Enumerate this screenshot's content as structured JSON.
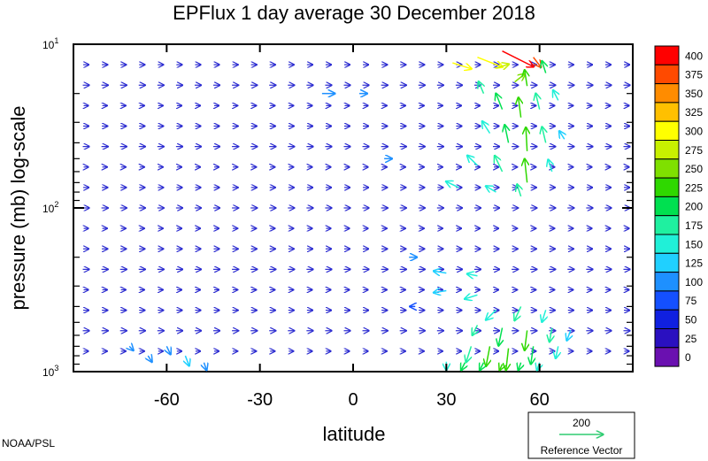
{
  "credit": "NOAA/PSL",
  "reference_vector": {
    "value": "200",
    "label": "Reference Vector",
    "color": "#2ecc71"
  },
  "chart_data": {
    "type": "quiver",
    "title": "EPFlux  1 day average  30 December 2018",
    "xlabel": "latitude",
    "ylabel": "pressure (mb)  log-scale",
    "x_ticks": [
      {
        "value": -60,
        "label": "-60"
      },
      {
        "value": -30,
        "label": "-30"
      },
      {
        "value": 0,
        "label": "0"
      },
      {
        "value": 30,
        "label": "30"
      },
      {
        "value": 60,
        "label": "60"
      }
    ],
    "y_ticks": [
      {
        "value": 10,
        "base": "10",
        "exp": "1"
      },
      {
        "value": 100,
        "base": "10",
        "exp": "2"
      },
      {
        "value": 1000,
        "base": "10",
        "exp": "3"
      }
    ],
    "xlim": [
      -90,
      90
    ],
    "ylim": [
      1000,
      10
    ],
    "y_scale": "log",
    "y_inverted": true,
    "colorbar": {
      "levels": [
        "400",
        "375",
        "350",
        "325",
        "300",
        "275",
        "250",
        "225",
        "200",
        "175",
        "150",
        "125",
        "100",
        "75",
        "50",
        "25",
        "0"
      ],
      "colors": [
        "#ff0000",
        "#ff4a00",
        "#ff8c00",
        "#ffc000",
        "#ffff00",
        "#c8f000",
        "#7fe000",
        "#2fd800",
        "#00e050",
        "#1ff0a0",
        "#20f0d8",
        "#20d0ff",
        "#1e90ff",
        "#1450ff",
        "#1020e0",
        "#2a10c0",
        "#6a10b0"
      ]
    },
    "vectors": [
      {
        "lat": 32,
        "p": 13,
        "u": 15,
        "v": -3,
        "mag": 300
      },
      {
        "lat": 40,
        "p": 12,
        "u": 20,
        "v": -5,
        "mag": 320
      },
      {
        "lat": 48,
        "p": 11,
        "u": 25,
        "v": -8,
        "mag": 400
      },
      {
        "lat": 58,
        "p": 12,
        "u": 6,
        "v": -5,
        "mag": 380
      },
      {
        "lat": 46,
        "p": 14,
        "u": 10,
        "v": 2,
        "mag": 290
      },
      {
        "lat": 52,
        "p": 17,
        "u": 8,
        "v": 4,
        "mag": 270
      },
      {
        "lat": 56,
        "p": 18,
        "u": -2,
        "v": 8,
        "mag": 240
      },
      {
        "lat": 62,
        "p": 15,
        "u": -3,
        "v": 6,
        "mag": 200
      },
      {
        "lat": 42,
        "p": 20,
        "u": -4,
        "v": 6,
        "mag": 180
      },
      {
        "lat": 48,
        "p": 25,
        "u": -5,
        "v": 8,
        "mag": 200
      },
      {
        "lat": 54,
        "p": 28,
        "u": -2,
        "v": 10,
        "mag": 230
      },
      {
        "lat": 60,
        "p": 25,
        "u": -3,
        "v": 8,
        "mag": 190
      },
      {
        "lat": 66,
        "p": 22,
        "u": -4,
        "v": 5,
        "mag": 150
      },
      {
        "lat": 44,
        "p": 35,
        "u": -6,
        "v": 6,
        "mag": 170
      },
      {
        "lat": 50,
        "p": 40,
        "u": -3,
        "v": 9,
        "mag": 200
      },
      {
        "lat": 56,
        "p": 45,
        "u": -1,
        "v": 12,
        "mag": 240
      },
      {
        "lat": 62,
        "p": 40,
        "u": -3,
        "v": 8,
        "mag": 180
      },
      {
        "lat": 68,
        "p": 38,
        "u": -4,
        "v": 4,
        "mag": 130
      },
      {
        "lat": 40,
        "p": 55,
        "u": -8,
        "v": 5,
        "mag": 160
      },
      {
        "lat": 48,
        "p": 60,
        "u": -6,
        "v": 8,
        "mag": 190
      },
      {
        "lat": 56,
        "p": 70,
        "u": -2,
        "v": 12,
        "mag": 230
      },
      {
        "lat": 64,
        "p": 60,
        "u": -3,
        "v": 6,
        "mag": 160
      },
      {
        "lat": 34,
        "p": 75,
        "u": -10,
        "v": 3,
        "mag": 150
      },
      {
        "lat": 46,
        "p": 80,
        "u": -8,
        "v": 3,
        "mag": 170
      },
      {
        "lat": 54,
        "p": 85,
        "u": -3,
        "v": 6,
        "mag": 190
      },
      {
        "lat": 30,
        "p": 250,
        "u": -10,
        "v": 1,
        "mag": 140
      },
      {
        "lat": 40,
        "p": 260,
        "u": -8,
        "v": 1,
        "mag": 150
      },
      {
        "lat": 30,
        "p": 320,
        "u": -10,
        "v": -1,
        "mag": 140
      },
      {
        "lat": 40,
        "p": 340,
        "u": -10,
        "v": -2,
        "mag": 150
      },
      {
        "lat": 46,
        "p": 420,
        "u": -8,
        "v": -5,
        "mag": 170
      },
      {
        "lat": 54,
        "p": 400,
        "u": -5,
        "v": -7,
        "mag": 190
      },
      {
        "lat": 62,
        "p": 420,
        "u": -3,
        "v": -6,
        "mag": 150
      },
      {
        "lat": 40,
        "p": 520,
        "u": -4,
        "v": -5,
        "mag": 180
      },
      {
        "lat": 48,
        "p": 540,
        "u": -3,
        "v": -9,
        "mag": 220
      },
      {
        "lat": 56,
        "p": 560,
        "u": -2,
        "v": -10,
        "mag": 230
      },
      {
        "lat": 64,
        "p": 540,
        "u": -2,
        "v": -7,
        "mag": 180
      },
      {
        "lat": 70,
        "p": 560,
        "u": -3,
        "v": -5,
        "mag": 130
      },
      {
        "lat": 38,
        "p": 700,
        "u": -4,
        "v": -8,
        "mag": 190
      },
      {
        "lat": 44,
        "p": 700,
        "u": -3,
        "v": -10,
        "mag": 230
      },
      {
        "lat": 50,
        "p": 720,
        "u": -2,
        "v": -11,
        "mag": 240
      },
      {
        "lat": 58,
        "p": 700,
        "u": -2,
        "v": -9,
        "mag": 210
      },
      {
        "lat": 66,
        "p": 700,
        "u": -2,
        "v": -6,
        "mag": 150
      },
      {
        "lat": 30,
        "p": 870,
        "u": 0,
        "v": -6,
        "mag": 170
      },
      {
        "lat": 36,
        "p": 880,
        "u": -3,
        "v": -8,
        "mag": 200
      },
      {
        "lat": 42,
        "p": 880,
        "u": -3,
        "v": -9,
        "mag": 220
      },
      {
        "lat": 48,
        "p": 900,
        "u": -2,
        "v": -9,
        "mag": 230
      },
      {
        "lat": 54,
        "p": 880,
        "u": -2,
        "v": -7,
        "mag": 200
      },
      {
        "lat": 60,
        "p": 880,
        "u": -2,
        "v": -5,
        "mag": 160
      },
      {
        "lat": -72,
        "p": 700,
        "u": 3,
        "v": -2,
        "mag": 100
      },
      {
        "lat": -66,
        "p": 800,
        "u": 3,
        "v": -3,
        "mag": 110
      },
      {
        "lat": -60,
        "p": 700,
        "u": 3,
        "v": -4,
        "mag": 120
      },
      {
        "lat": -54,
        "p": 800,
        "u": 3,
        "v": -5,
        "mag": 130
      },
      {
        "lat": -48,
        "p": 880,
        "u": 2,
        "v": -4,
        "mag": 120
      },
      {
        "lat": -10,
        "p": 20,
        "u": 10,
        "v": 0,
        "mag": 120
      },
      {
        "lat": 2,
        "p": 20,
        "u": 6,
        "v": 0,
        "mag": 110
      },
      {
        "lat": 10,
        "p": 50,
        "u": 6,
        "v": 0,
        "mag": 100
      },
      {
        "lat": 18,
        "p": 200,
        "u": 6,
        "v": 0,
        "mag": 100
      },
      {
        "lat": 20,
        "p": 400,
        "u": -4,
        "v": 0,
        "mag": 90
      }
    ]
  }
}
